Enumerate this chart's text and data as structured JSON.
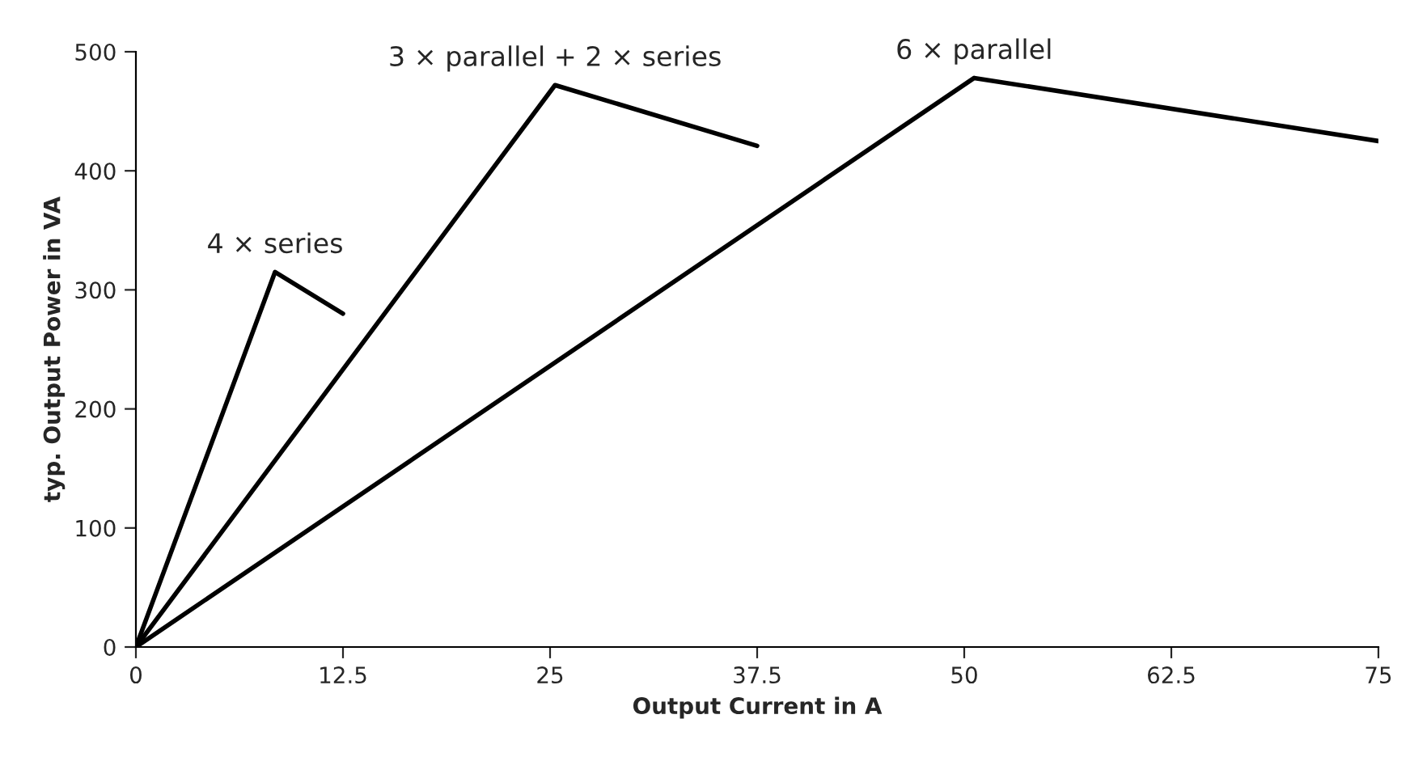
{
  "chart_data": {
    "type": "line",
    "xlabel": "Output Current in A",
    "ylabel": "typ. Output Power in VA",
    "xlim": [
      0,
      75
    ],
    "ylim": [
      0,
      500
    ],
    "xticks": [
      0,
      12.5,
      25,
      37.5,
      50,
      62.5,
      75
    ],
    "yticks": [
      0,
      100,
      200,
      300,
      400,
      500
    ],
    "grid": false,
    "legend": false,
    "marker": "none",
    "line_style": "solid",
    "series": [
      {
        "name": "4 × series",
        "color": "#000000",
        "x": [
          0,
          8.4,
          12.5
        ],
        "values": [
          0,
          315,
          280
        ]
      },
      {
        "name": "3 × parallel + 2 × series",
        "color": "#000000",
        "x": [
          0,
          25.3,
          37.5
        ],
        "values": [
          0,
          472,
          421
        ]
      },
      {
        "name": "6 × parallel",
        "color": "#000000",
        "x": [
          0,
          50.6,
          75
        ],
        "values": [
          0,
          478,
          425
        ]
      }
    ]
  }
}
